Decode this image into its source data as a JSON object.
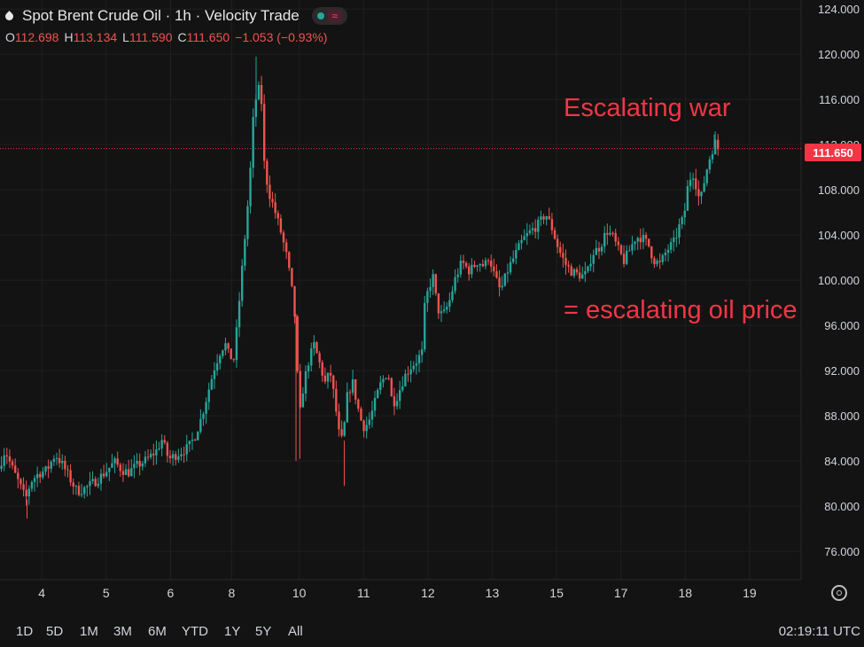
{
  "header": {
    "title": "Spot Brent Crude Oil · 1h · Velocity Trade",
    "ohlc": {
      "o_key": "O",
      "o_val": "112.698",
      "h_key": "H",
      "h_val": "113.134",
      "l_key": "L",
      "l_val": "111.590",
      "c_key": "C",
      "c_val": "111.650",
      "change": "−1.053 (−0.93%)"
    }
  },
  "current_price_label": "111.650",
  "annotations": [
    "Escalating war",
    "= escalating oil price"
  ],
  "range_buttons": [
    "1D",
    "5D",
    "1M",
    "3M",
    "6M",
    "YTD",
    "1Y",
    "5Y",
    "All"
  ],
  "clock": "02:19:11 UTC",
  "colors": {
    "background": "#131313",
    "up": "#26a69a",
    "down": "#ef5350",
    "annotation": "#f23645",
    "price_line": "#f23645"
  },
  "chart_data": {
    "type": "candlestick",
    "interval": "1h",
    "ylim": [
      73.5,
      124.8
    ],
    "y_ticks": [
      "124.000",
      "120.000",
      "116.000",
      "112.000",
      "108.000",
      "104.000",
      "100.000",
      "96.000",
      "92.000",
      "88.000",
      "84.000",
      "80.000",
      "76.000"
    ],
    "y_tick_values": [
      124,
      120,
      116,
      112,
      108,
      104,
      100,
      96,
      92,
      88,
      84,
      80,
      76
    ],
    "x_ticks": [
      "4",
      "5",
      "6",
      "8",
      "10",
      "11",
      "12",
      "13",
      "15",
      "17",
      "18",
      "19"
    ],
    "x_tick_positions": [
      3.65,
      4.65,
      5.65,
      6.6,
      7.65,
      8.65,
      9.65,
      10.65,
      11.65,
      12.65,
      13.65,
      14.65
    ],
    "xlim": [
      3.0,
      15.45
    ],
    "current_price": 111.65,
    "price_path": [
      [
        3.0,
        83.3
      ],
      [
        3.1,
        85.0
      ],
      [
        3.2,
        83.5
      ],
      [
        3.32,
        82.0
      ],
      [
        3.42,
        80.6
      ],
      [
        3.5,
        82.2
      ],
      [
        3.62,
        82.9
      ],
      [
        3.75,
        83.2
      ],
      [
        3.88,
        84.6
      ],
      [
        4.0,
        83.6
      ],
      [
        4.12,
        82.3
      ],
      [
        4.22,
        81.3
      ],
      [
        4.35,
        81.6
      ],
      [
        4.5,
        82.2
      ],
      [
        4.62,
        82.8
      ],
      [
        4.8,
        83.9
      ],
      [
        4.92,
        83.2
      ],
      [
        5.02,
        83.0
      ],
      [
        5.15,
        83.6
      ],
      [
        5.3,
        84.1
      ],
      [
        5.45,
        84.9
      ],
      [
        5.55,
        86.0
      ],
      [
        5.6,
        84.7
      ],
      [
        5.66,
        84.2
      ],
      [
        5.8,
        84.7
      ],
      [
        5.95,
        85.2
      ],
      [
        6.05,
        86.2
      ],
      [
        6.15,
        87.8
      ],
      [
        6.25,
        90.0
      ],
      [
        6.35,
        92.2
      ],
      [
        6.45,
        93.8
      ],
      [
        6.52,
        94.4
      ],
      [
        6.58,
        93.3
      ],
      [
        6.66,
        93.0
      ],
      [
        6.9,
        108.5
      ],
      [
        6.97,
        115.5
      ],
      [
        7.05,
        117.0
      ],
      [
        7.1,
        115.2
      ],
      [
        7.13,
        110.0
      ],
      [
        7.2,
        107.8
      ],
      [
        7.3,
        106.0
      ],
      [
        7.4,
        104.0
      ],
      [
        7.48,
        102.0
      ],
      [
        7.55,
        99.5
      ],
      [
        7.6,
        97.0
      ],
      [
        7.64,
        92.0
      ],
      [
        7.68,
        88.0
      ],
      [
        7.72,
        90.0
      ],
      [
        7.8,
        92.5
      ],
      [
        7.9,
        94.3
      ],
      [
        7.98,
        92.8
      ],
      [
        8.08,
        90.8
      ],
      [
        8.15,
        92.0
      ],
      [
        8.22,
        89.5
      ],
      [
        8.3,
        86.0
      ],
      [
        8.35,
        85.8
      ],
      [
        8.42,
        89.8
      ],
      [
        8.5,
        91.0
      ],
      [
        8.58,
        88.8
      ],
      [
        8.66,
        87.0
      ],
      [
        8.74,
        87.3
      ],
      [
        8.82,
        88.6
      ],
      [
        8.92,
        90.6
      ],
      [
        9.05,
        92.0
      ],
      [
        9.12,
        89.0
      ],
      [
        9.2,
        89.8
      ],
      [
        9.3,
        91.4
      ],
      [
        9.4,
        92.3
      ],
      [
        9.5,
        92.9
      ],
      [
        9.58,
        93.6
      ],
      [
        9.62,
        97.5
      ],
      [
        9.68,
        99.3
      ],
      [
        9.75,
        100.3
      ],
      [
        9.82,
        97.5
      ],
      [
        9.9,
        96.8
      ],
      [
        10.0,
        98.0
      ],
      [
        10.1,
        100.2
      ],
      [
        10.2,
        101.6
      ],
      [
        10.32,
        100.8
      ],
      [
        10.45,
        101.7
      ],
      [
        10.55,
        101.2
      ],
      [
        10.62,
        102.2
      ],
      [
        10.7,
        100.5
      ],
      [
        10.8,
        99.0
      ],
      [
        10.92,
        101.0
      ],
      [
        11.05,
        102.5
      ],
      [
        11.15,
        103.6
      ],
      [
        11.28,
        104.4
      ],
      [
        11.4,
        105.0
      ],
      [
        11.5,
        105.9
      ],
      [
        11.6,
        104.6
      ],
      [
        11.7,
        102.8
      ],
      [
        11.8,
        101.5
      ],
      [
        11.9,
        100.8
      ],
      [
        12.0,
        100.5
      ],
      [
        12.08,
        100.4
      ],
      [
        12.15,
        100.6
      ],
      [
        12.22,
        102.3
      ],
      [
        12.35,
        103.0
      ],
      [
        12.45,
        104.4
      ],
      [
        12.55,
        103.8
      ],
      [
        12.62,
        102.8
      ],
      [
        12.72,
        101.7
      ],
      [
        12.8,
        102.6
      ],
      [
        12.9,
        103.8
      ],
      [
        13.0,
        103.8
      ],
      [
        13.1,
        103.1
      ],
      [
        13.18,
        101.8
      ],
      [
        13.28,
        101.4
      ],
      [
        13.38,
        102.6
      ],
      [
        13.5,
        103.4
      ],
      [
        13.58,
        104.8
      ],
      [
        13.65,
        105.5
      ],
      [
        13.7,
        108.0
      ],
      [
        13.78,
        109.7
      ],
      [
        13.85,
        108.2
      ],
      [
        13.9,
        106.8
      ],
      [
        13.95,
        108.3
      ],
      [
        14.02,
        110.2
      ],
      [
        14.08,
        111.4
      ],
      [
        14.14,
        112.2
      ],
      [
        14.18,
        111.65
      ]
    ],
    "wicks": [
      [
        3.42,
        78.9
      ],
      [
        6.98,
        119.8
      ],
      [
        7.6,
        84.0
      ],
      [
        8.35,
        81.8
      ],
      [
        7.66,
        84.2
      ],
      [
        14.1,
        112.9
      ]
    ]
  }
}
